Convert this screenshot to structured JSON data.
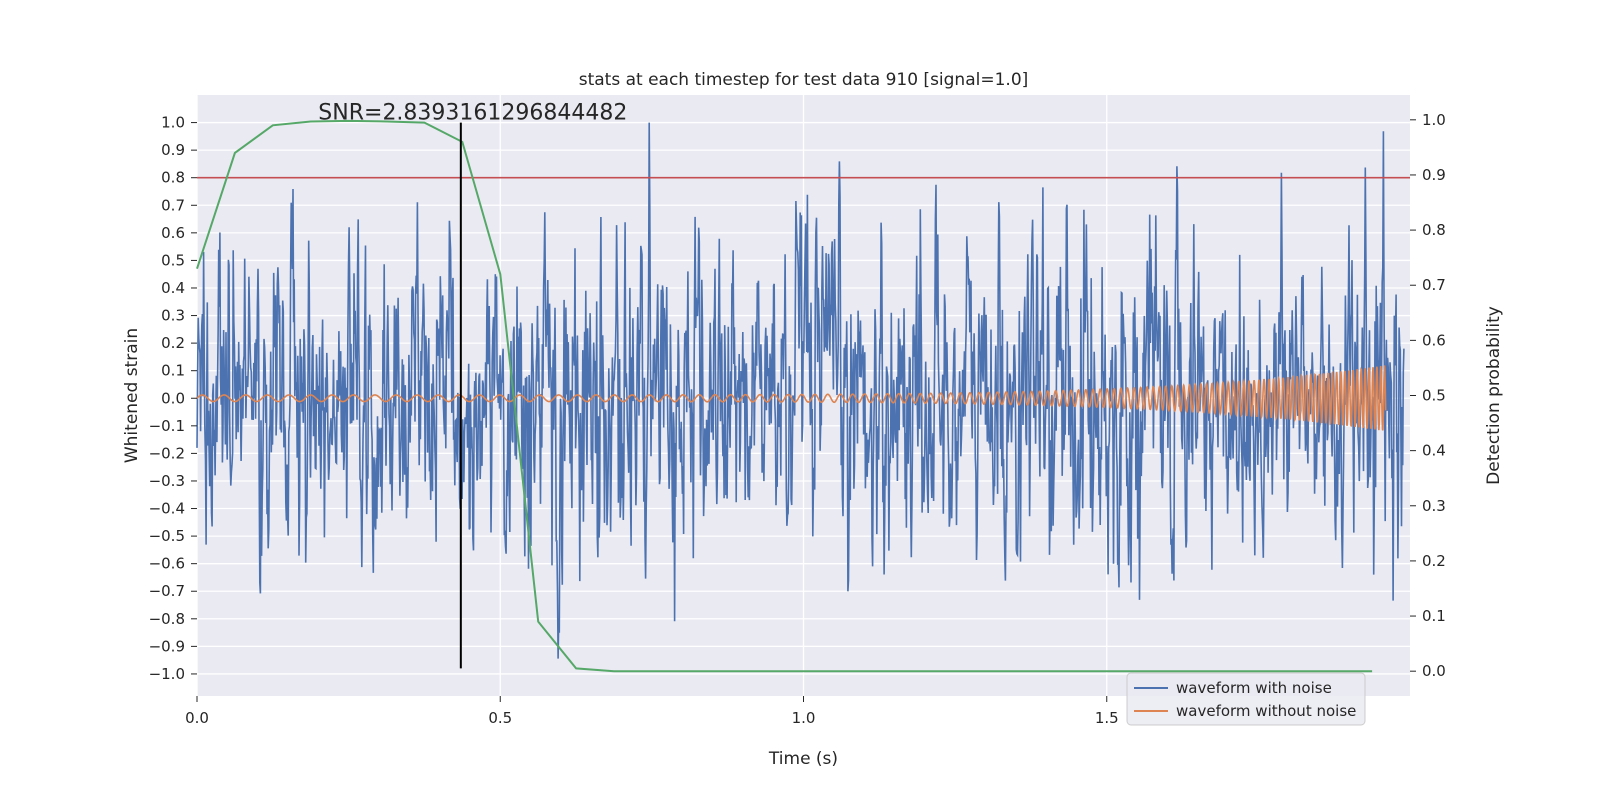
{
  "chart_data": {
    "type": "line",
    "title": "stats at each timestep for test data 910 [signal=1.0]",
    "xlabel": "Time (s)",
    "ylabel": "Whitened strain",
    "y2label": "Detection probability",
    "xlim": [
      0.0,
      2.0
    ],
    "ylim": [
      -1.08,
      1.1
    ],
    "y2lim": [
      -0.045,
      1.045
    ],
    "x_ticks": [
      0.0,
      0.5,
      1.0,
      1.5
    ],
    "x_tick_labels": [
      "0.0",
      "0.5",
      "1.0",
      "1.5"
    ],
    "y_ticks": [
      1.0,
      0.9,
      0.8,
      0.7,
      0.6,
      0.5,
      0.4,
      0.3,
      0.2,
      0.1,
      0.0,
      -0.1,
      -0.2,
      -0.3,
      -0.4,
      -0.5,
      -0.6,
      -0.7,
      -0.8,
      -0.9,
      -1.0
    ],
    "y_tick_labels": [
      "1.0",
      "0.9",
      "0.8",
      "0.7",
      "0.6",
      "0.5",
      "0.4",
      "0.3",
      "0.2",
      "0.1",
      "0.0",
      "−0.1",
      "−0.2",
      "−0.3",
      "−0.4",
      "−0.5",
      "−0.6",
      "−0.7",
      "−0.8",
      "−0.9",
      "−1.0"
    ],
    "y2_ticks": [
      1.0,
      0.9,
      0.8,
      0.7,
      0.6,
      0.5,
      0.4,
      0.3,
      0.2,
      0.1,
      0.0
    ],
    "y2_tick_labels": [
      "1.0",
      "0.9",
      "0.8",
      "0.7",
      "0.6",
      "0.5",
      "0.4",
      "0.3",
      "0.2",
      "0.1",
      "0.0"
    ],
    "annotation": {
      "text": "SNR=2.8393161296844482",
      "x": 0.2,
      "y": 1.0
    },
    "threshold": {
      "y": 0.8,
      "color": "#c44e52"
    },
    "marker_line": {
      "x": 0.435,
      "y_from": -0.98,
      "y_to": 1.0,
      "color": "#000000"
    },
    "series": [
      {
        "name": "waveform with noise",
        "color": "#4c72b0",
        "kind": "noise",
        "t_start": 0.0,
        "t_end": 1.99,
        "n_points": 2000,
        "amplitude_std": 0.28,
        "peak_max": 1.0,
        "peak_min": -0.98
      },
      {
        "name": "waveform without noise",
        "color": "#dd8452",
        "kind": "chirp",
        "t_start": 0.0,
        "t_end": 1.96,
        "amplitude_start": 0.012,
        "amplitude_end": 0.12,
        "freq_start_hz": 28,
        "freq_end_hz": 160
      },
      {
        "name": "detection probability",
        "color": "#55a868",
        "axis": "right",
        "x": [
          0.0,
          0.0625,
          0.125,
          0.1875,
          0.25,
          0.3125,
          0.375,
          0.4375,
          0.5,
          0.5625,
          0.625,
          0.6875,
          0.75,
          0.8125,
          0.875,
          0.9375,
          1.0,
          1.0625,
          1.125,
          1.1875,
          1.25,
          1.3125,
          1.375,
          1.4375,
          1.5,
          1.5625,
          1.625,
          1.6875,
          1.75,
          1.8125,
          1.875,
          1.9375
        ],
        "y": [
          0.73,
          0.94,
          0.99,
          0.997,
          0.998,
          0.997,
          0.995,
          0.96,
          0.72,
          0.09,
          0.005,
          0.0,
          0.0,
          0.0,
          0.0,
          0.0,
          0.0,
          0.0,
          0.0,
          0.0,
          0.0,
          0.0,
          0.0,
          0.0,
          0.0,
          0.0,
          0.0,
          0.0,
          0.0,
          0.0,
          0.0,
          0.0
        ]
      }
    ],
    "legend": {
      "location": "lower-right",
      "entries": [
        {
          "label": "waveform with noise",
          "color": "#4c72b0"
        },
        {
          "label": "waveform without noise",
          "color": "#dd8452"
        }
      ]
    },
    "style": {
      "background": "#eaeaf2",
      "grid": true,
      "grid_color": "#ffffff"
    }
  }
}
